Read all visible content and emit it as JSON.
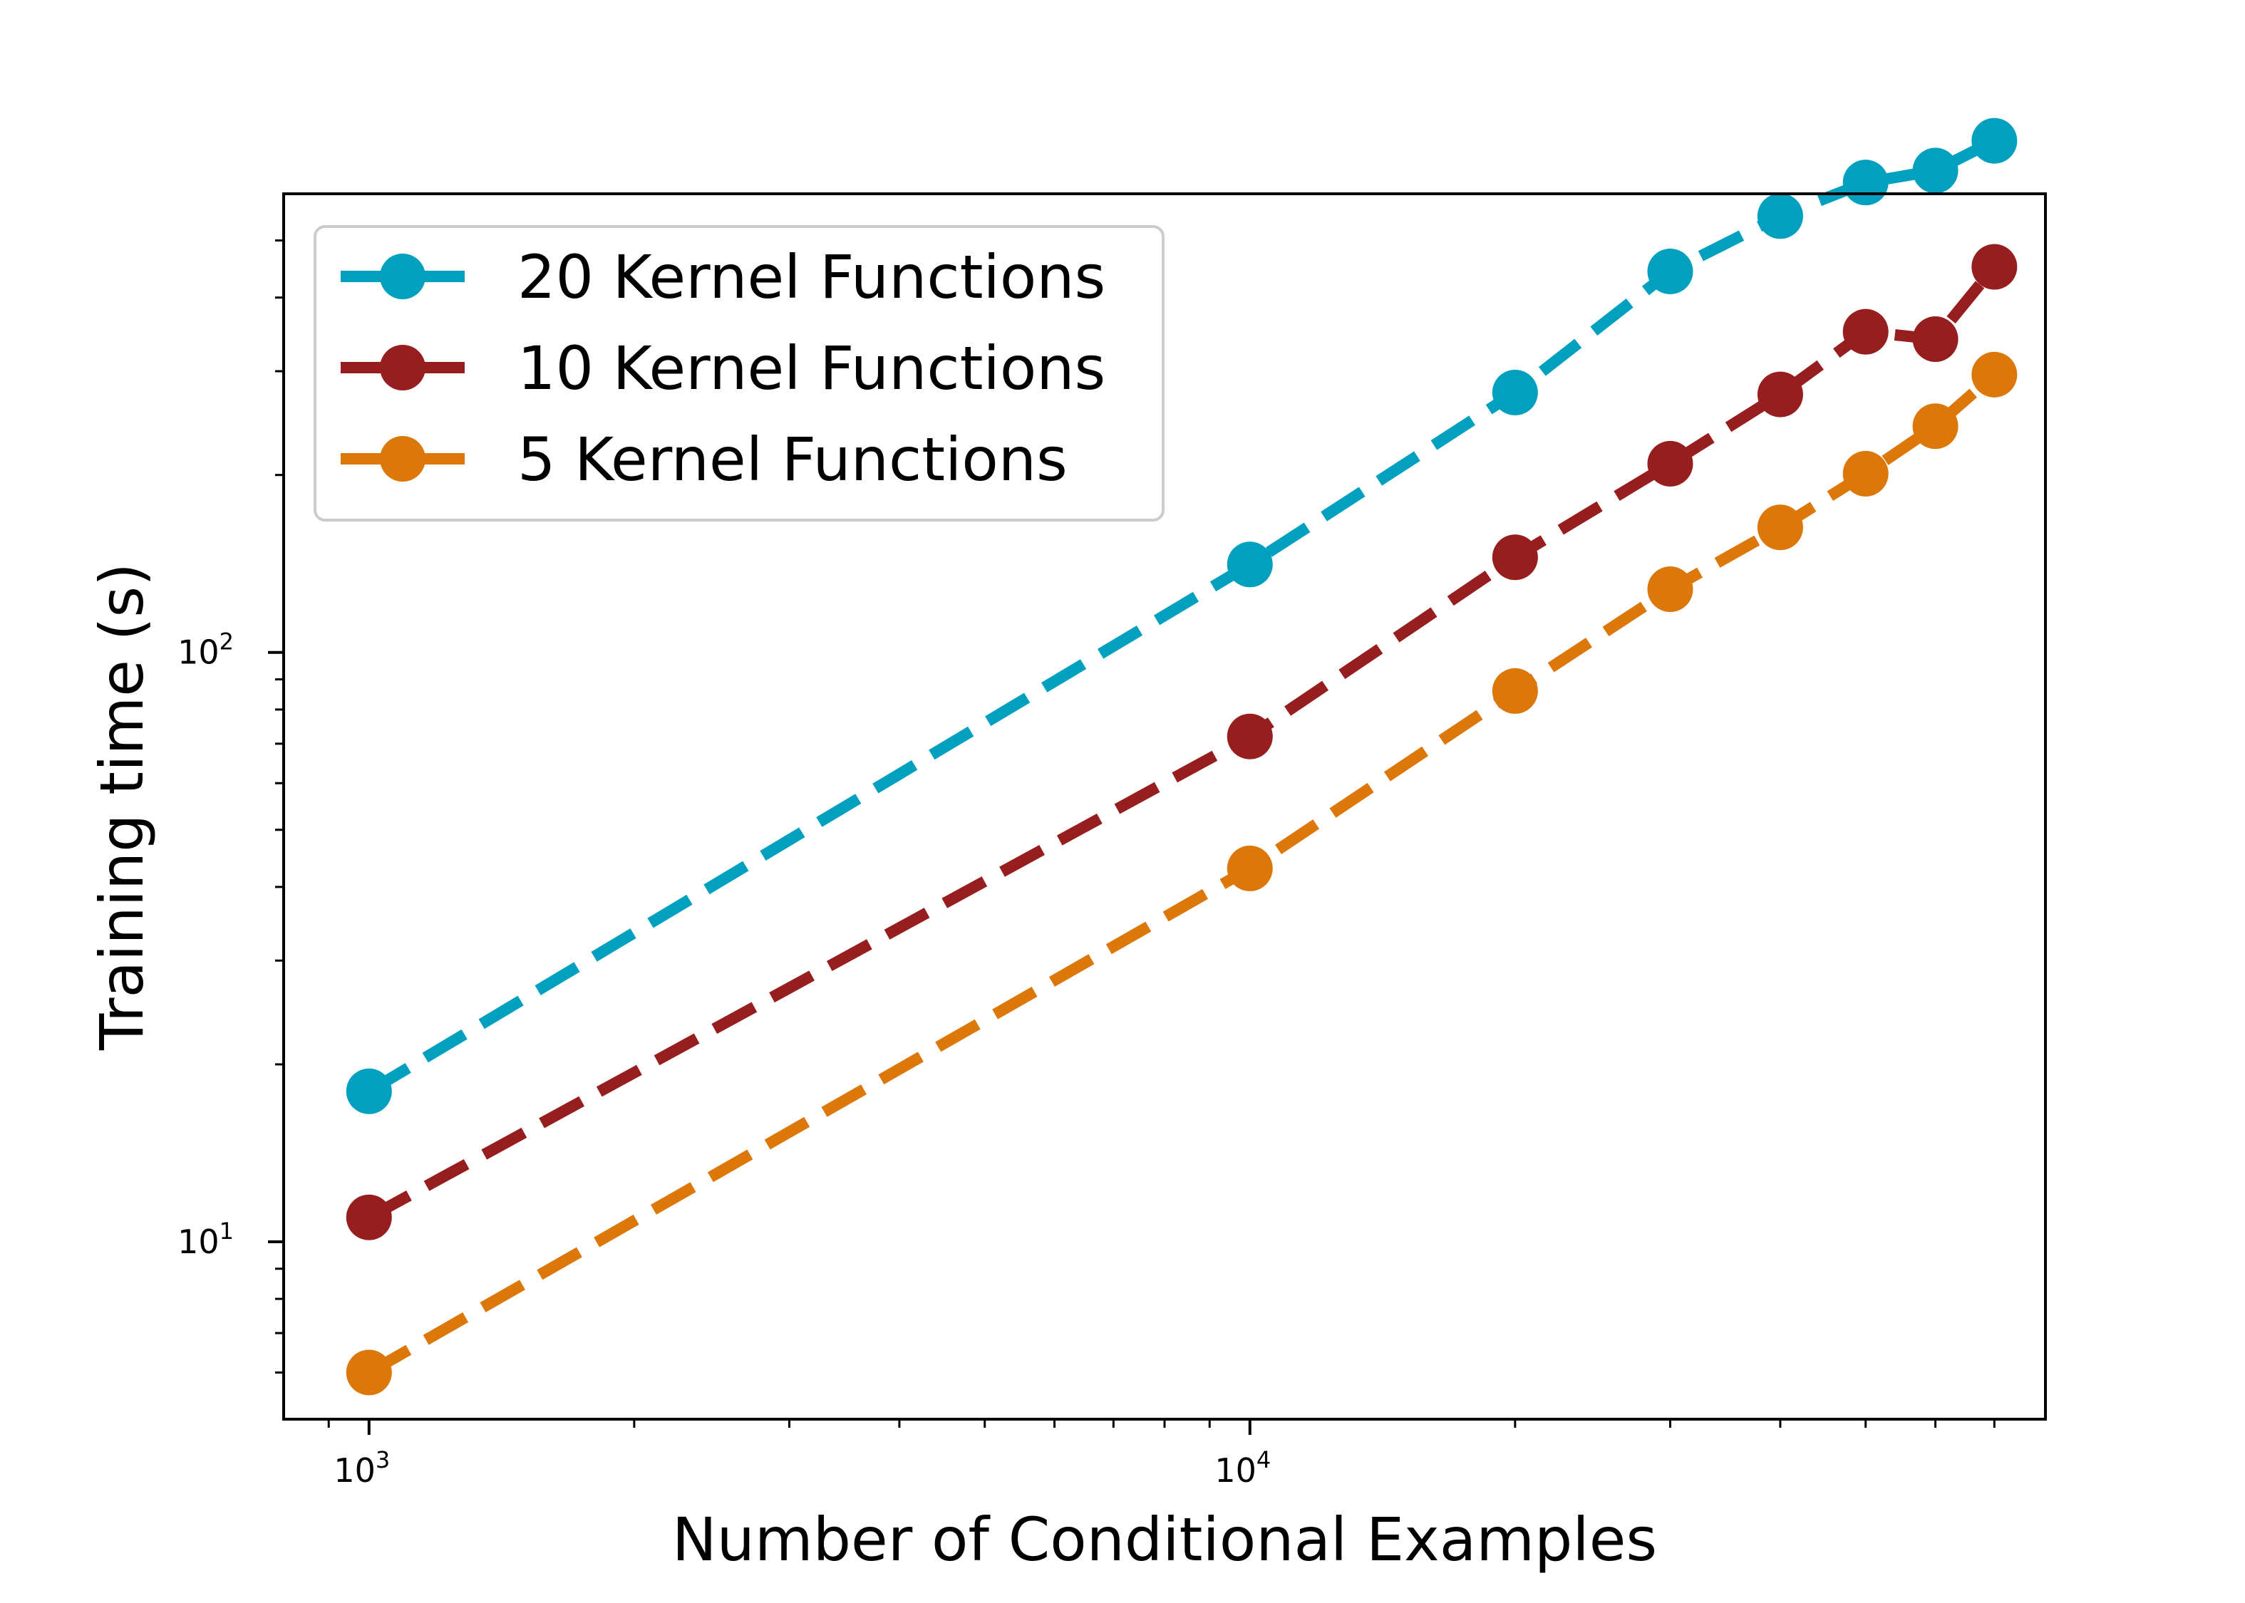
{
  "chart_data": {
    "type": "line",
    "title": "",
    "xlabel": "Number of Conditional Examples",
    "ylabel": "Training time (s)",
    "xscale": "log",
    "yscale": "log",
    "xlim": [
      800,
      80000
    ],
    "ylim": [
      5,
      600
    ],
    "grid": false,
    "legend_position": "top-left",
    "x_ticks": [
      {
        "value": 1000,
        "base": "10",
        "exp": "3"
      },
      {
        "value": 10000,
        "base": "10",
        "exp": "4"
      }
    ],
    "y_ticks": [
      {
        "value": 10,
        "base": "10",
        "exp": "1"
      },
      {
        "value": 100,
        "base": "10",
        "exp": "2"
      }
    ],
    "x": [
      1000,
      10000,
      20000,
      30000,
      40000,
      50000,
      60000,
      70000
    ],
    "series": [
      {
        "name": "20 Kernel Functions",
        "color": "#00A0BE",
        "values": [
          18,
          141,
          276,
          443,
          550,
          627,
          657,
          738
        ]
      },
      {
        "name": "10 Kernel Functions",
        "color": "#961E1E",
        "values": [
          11,
          72,
          145,
          209,
          274,
          350,
          340,
          451
        ]
      },
      {
        "name": "5 Kernel Functions",
        "color": "#DC780A",
        "values": [
          6,
          43,
          86,
          128,
          163,
          201,
          242,
          296
        ]
      }
    ]
  }
}
